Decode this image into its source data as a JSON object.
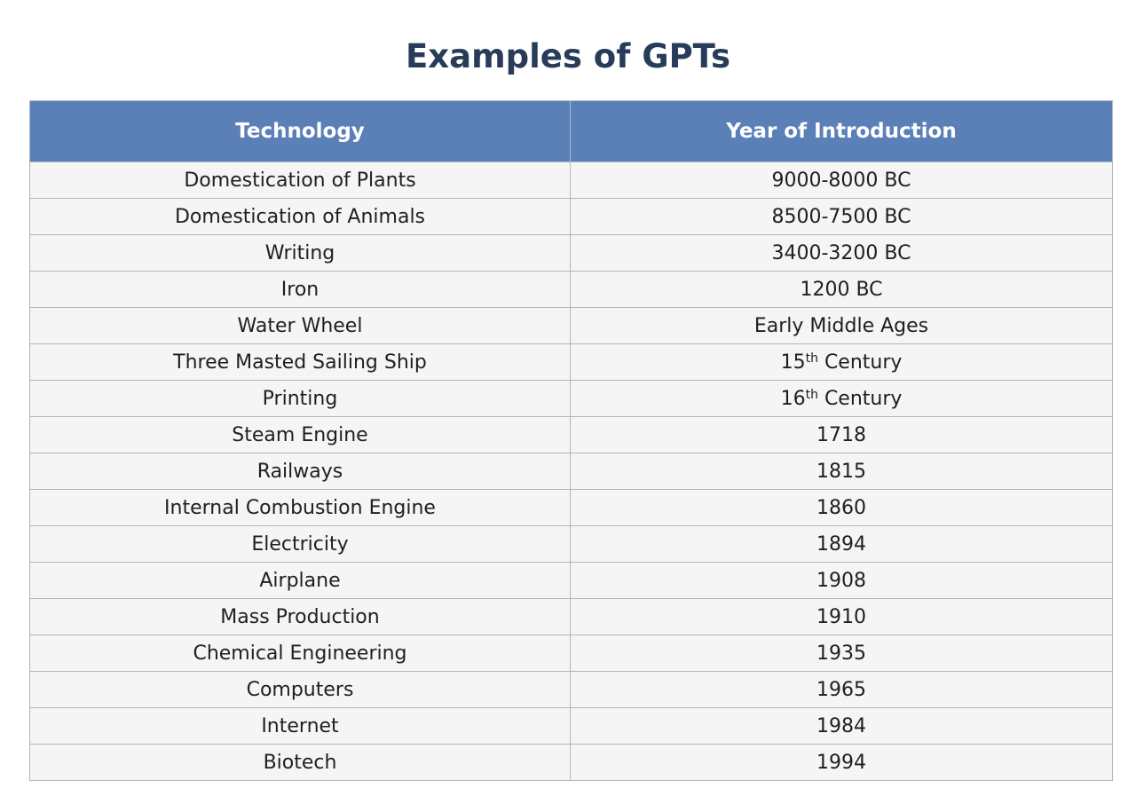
{
  "title": "Examples of GPTs",
  "table": {
    "headers": [
      "Technology",
      "Year of Introduction"
    ],
    "rows": [
      {
        "technology": "Domestication of Plants",
        "year": "9000-8000 BC"
      },
      {
        "technology": "Domestication of Animals",
        "year": "8500-7500 BC"
      },
      {
        "technology": "Writing",
        "year": "3400-3200 BC"
      },
      {
        "technology": "Iron",
        "year": "1200 BC"
      },
      {
        "technology": "Water Wheel",
        "year": "Early Middle Ages"
      },
      {
        "technology": "Three Masted Sailing Ship",
        "year": "15",
        "year_sup": "th",
        "year_suffix": " Century"
      },
      {
        "technology": "Printing",
        "year": "16",
        "year_sup": "th",
        "year_suffix": " Century"
      },
      {
        "technology": "Steam Engine",
        "year": "1718"
      },
      {
        "technology": "Railways",
        "year": "1815"
      },
      {
        "technology": "Internal Combustion Engine",
        "year": "1860"
      },
      {
        "technology": "Electricity",
        "year": "1894"
      },
      {
        "technology": "Airplane",
        "year": "1908"
      },
      {
        "technology": "Mass Production",
        "year": "1910"
      },
      {
        "technology": "Chemical Engineering",
        "year": "1935"
      },
      {
        "technology": "Computers",
        "year": "1965"
      },
      {
        "technology": "Internet",
        "year": "1984"
      },
      {
        "technology": "Biotech",
        "year": "1994"
      }
    ]
  }
}
